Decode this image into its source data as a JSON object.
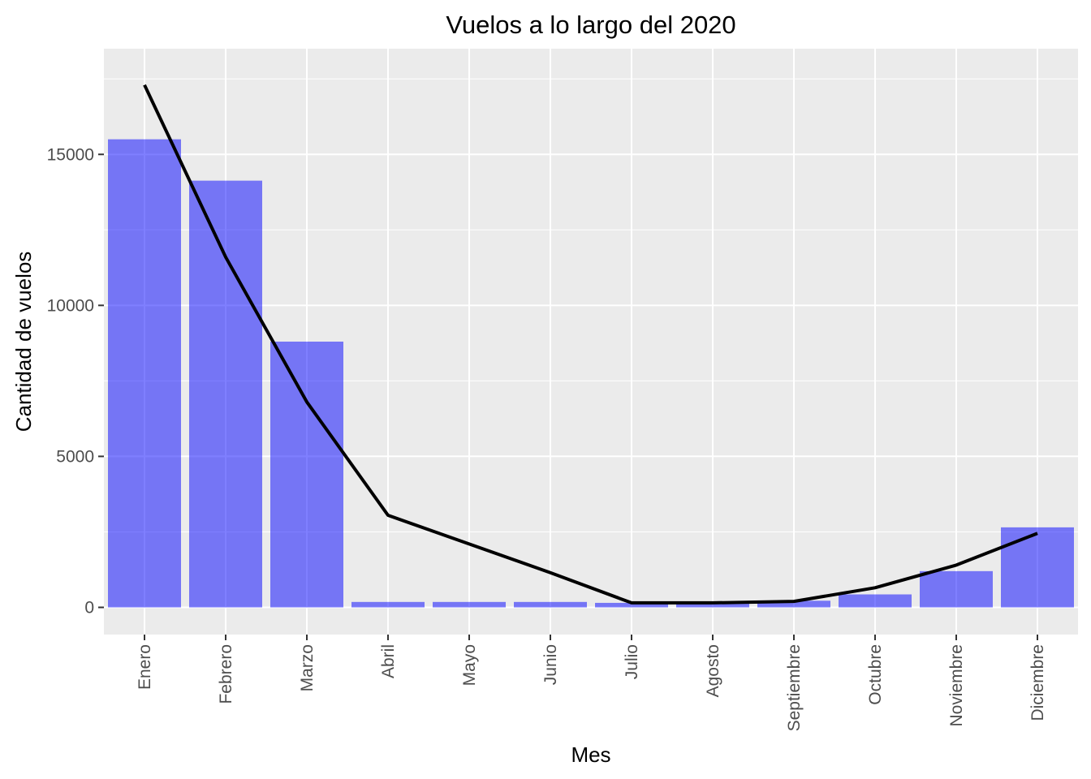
{
  "chart_data": {
    "type": "bar",
    "title": "Vuelos a lo largo del 2020",
    "xlabel": "Mes",
    "ylabel": "Cantidad de vuelos",
    "categories": [
      "Enero",
      "Febrero",
      "Marzo",
      "Abril",
      "Mayo",
      "Junio",
      "Julio",
      "Agosto",
      "Septiembre",
      "Octubre",
      "Noviembre",
      "Diciembre"
    ],
    "values": [
      15500,
      14130,
      8800,
      180,
      180,
      180,
      150,
      120,
      220,
      430,
      1200,
      2650
    ],
    "line_values": [
      17300,
      11600,
      6800,
      3050,
      2100,
      1150,
      150,
      150,
      200,
      650,
      1400,
      2450
    ],
    "ylim": [
      -900,
      18500
    ],
    "yticks": [
      0,
      5000,
      10000,
      15000
    ],
    "grid": true,
    "legend": "none",
    "colors": {
      "bar": "#0000ff",
      "bar_opacity": 0.5,
      "line": "#000000",
      "panel": "#ebebeb",
      "grid": "#ffffff"
    }
  }
}
